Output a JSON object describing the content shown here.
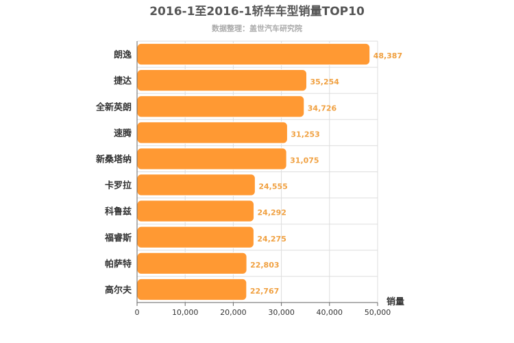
{
  "chart_data": {
    "type": "bar",
    "orientation": "horizontal",
    "title": "2016-1至2016-1轿车车型销量TOP10",
    "subtitle": "数据整理：盖世汽车研究院",
    "xlabel": "销量",
    "ylabel": "",
    "categories": [
      "朗逸",
      "捷达",
      "全新英朗",
      "速腾",
      "新桑塔纳",
      "卡罗拉",
      "科鲁兹",
      "福睿斯",
      "帕萨特",
      "高尔夫"
    ],
    "values": [
      48387,
      35254,
      34726,
      31253,
      31075,
      24555,
      24292,
      24275,
      22803,
      22767
    ],
    "value_labels": [
      "48,387",
      "35,254",
      "34,726",
      "31,253",
      "31,075",
      "24,555",
      "24,292",
      "24,275",
      "22,803",
      "22,767"
    ],
    "xlim": [
      0,
      50000
    ],
    "xticks": [
      0,
      10000,
      20000,
      30000,
      40000,
      50000
    ],
    "xtick_labels": [
      "0",
      "10,000",
      "20,000",
      "30,000",
      "40,000",
      "50,000"
    ],
    "grid": true,
    "legend": "none",
    "colors": {
      "bar": "#ff9933",
      "bar_stroke": "#ffffff",
      "data_label": "#f0a040",
      "grid": "#dddddd",
      "axis": "#666666"
    }
  }
}
